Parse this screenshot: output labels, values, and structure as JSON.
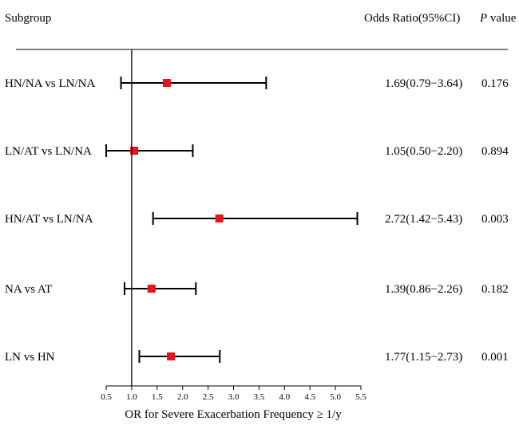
{
  "header": {
    "subgroup": "Subgroup",
    "odds_ratio": "Odds Ratio(95%CI)",
    "p_italic": "P",
    "p_rest": " value"
  },
  "chart_data": {
    "type": "forest",
    "xlabel": "OR for Severe Exacerbation Frequency ≥ 1/y",
    "xlim": [
      0.5,
      5.5
    ],
    "xticks": [
      "0.5",
      "1.0",
      "1.5",
      "2.0",
      "2.5",
      "3.0",
      "3.5",
      "4.0",
      "4.5",
      "5.0",
      "5.5"
    ],
    "reference_line": 1.0,
    "marker_color": "#e8141b",
    "rows": [
      {
        "label": "HN/NA vs LN/NA",
        "or": 1.69,
        "lower": 0.79,
        "upper": 3.64,
        "or_text": "1.69(0.79−3.64)",
        "p": "0.176"
      },
      {
        "label": "LN/AT vs LN/NA",
        "or": 1.05,
        "lower": 0.5,
        "upper": 2.2,
        "or_text": "1.05(0.50−2.20)",
        "p": "0.894"
      },
      {
        "label": "HN/AT vs LN/NA",
        "or": 2.72,
        "lower": 1.42,
        "upper": 5.43,
        "or_text": "2.72(1.42−5.43)",
        "p": "0.003"
      },
      {
        "label": "NA vs AT",
        "or": 1.39,
        "lower": 0.86,
        "upper": 2.26,
        "or_text": "1.39(0.86−2.26)",
        "p": "0.182"
      },
      {
        "label": "LN vs HN",
        "or": 1.77,
        "lower": 1.15,
        "upper": 2.73,
        "or_text": "1.77(1.15−2.73)",
        "p": "0.001"
      }
    ]
  }
}
